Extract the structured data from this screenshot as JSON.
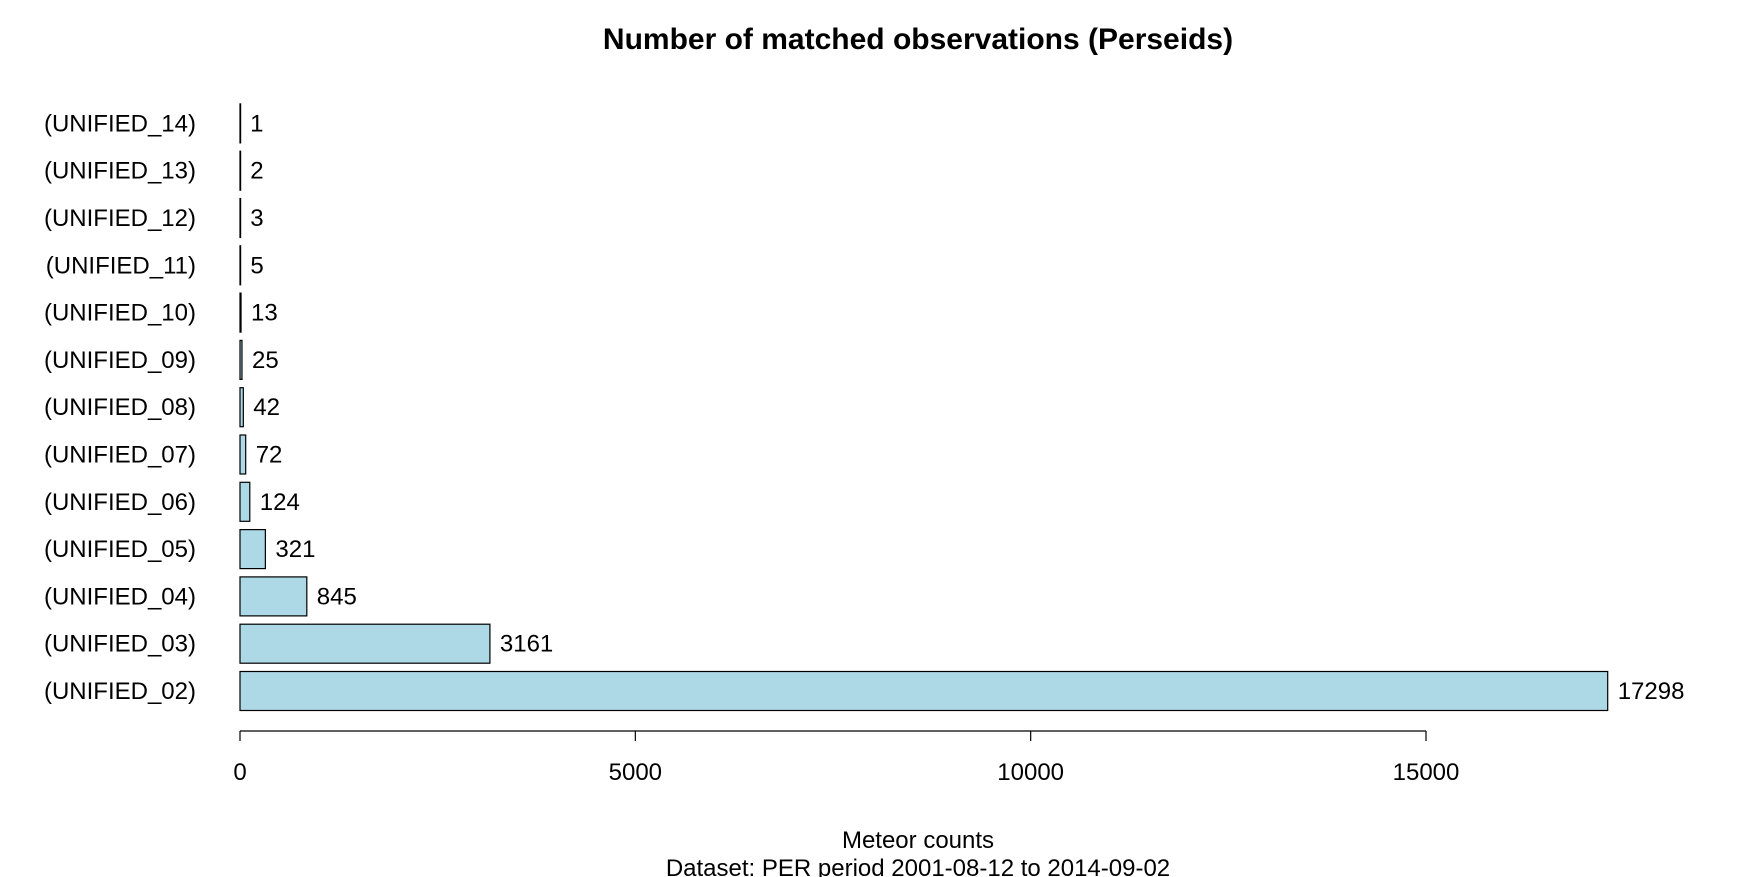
{
  "chart_data": {
    "type": "bar",
    "orientation": "horizontal",
    "title": "Number of matched observations (Perseids)",
    "xlabel": "Meteor counts",
    "subtitle": "Dataset: PER period 2001-08-12 to 2014-09-02",
    "categories": [
      "(UNIFIED_02)",
      "(UNIFIED_03)",
      "(UNIFIED_04)",
      "(UNIFIED_05)",
      "(UNIFIED_06)",
      "(UNIFIED_07)",
      "(UNIFIED_08)",
      "(UNIFIED_09)",
      "(UNIFIED_10)",
      "(UNIFIED_11)",
      "(UNIFIED_12)",
      "(UNIFIED_13)",
      "(UNIFIED_14)"
    ],
    "values": [
      17298,
      3161,
      845,
      321,
      124,
      72,
      42,
      25,
      13,
      5,
      3,
      2,
      1
    ],
    "data_labels": [
      "17298",
      "3161",
      "845",
      "321",
      "124",
      "72",
      "42",
      "25",
      "13",
      "5",
      "3",
      "2",
      "1"
    ],
    "xticks": [
      0,
      5000,
      10000,
      15000
    ],
    "xtick_labels": [
      "0",
      "5000",
      "10000",
      "15000"
    ],
    "xlim": [
      0,
      15000
    ],
    "bar_color": "#add8e6",
    "grid": false,
    "legend": "none"
  }
}
